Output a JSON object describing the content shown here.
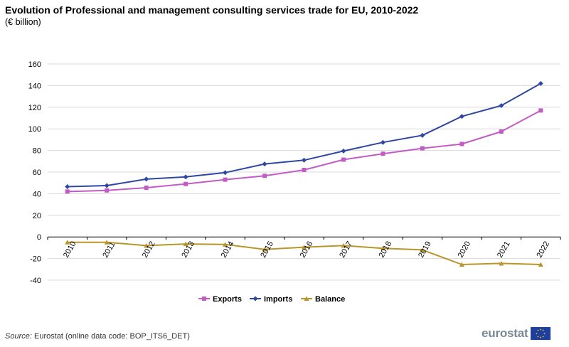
{
  "header": {
    "title": "Evolution of Professional and management consulting services trade for EU, 2010-2022",
    "subtitle": "(€ billion)"
  },
  "footer": {
    "source_label": "Source:",
    "source_text": "Eurostat (online data code: BOP_ITS6_DET)"
  },
  "branding": {
    "logo_text": "eurostat",
    "logo_icon": "eu-flag-icon"
  },
  "colors": {
    "exports": "#c25cc4",
    "imports": "#2f47a3",
    "balance": "#b8962b",
    "grid": "#d9d9d9",
    "axis": "#000000"
  },
  "chart_data": {
    "type": "line",
    "title": "Evolution of Professional and management consulting services trade for EU, 2010-2022",
    "subtitle": "(€ billion)",
    "xlabel": "",
    "ylabel": "",
    "ylim": [
      -40,
      160
    ],
    "yticks": [
      -40,
      -20,
      0,
      20,
      40,
      60,
      80,
      100,
      120,
      140,
      160
    ],
    "grid": true,
    "legend_position": "bottom-center",
    "categories": [
      "2010",
      "2011",
      "2012",
      "2013",
      "2014",
      "2015",
      "2016",
      "2017",
      "2018",
      "2019",
      "2020",
      "2021",
      "2022"
    ],
    "series": [
      {
        "name": "Exports",
        "marker": "square",
        "values": [
          42,
          43,
          45.5,
          49,
          53,
          56.5,
          62,
          71.5,
          77,
          82,
          86,
          97.5,
          117
        ]
      },
      {
        "name": "Imports",
        "marker": "diamond",
        "values": [
          46.5,
          47.5,
          53.5,
          55.5,
          59.5,
          67.5,
          71,
          79.5,
          87.5,
          94,
          111.5,
          121.5,
          142
        ]
      },
      {
        "name": "Balance",
        "marker": "triangle",
        "values": [
          -5,
          -5,
          -8,
          -6.5,
          -7,
          -11.5,
          -9.5,
          -8,
          -10.5,
          -12,
          -25.5,
          -24.5,
          -25.5
        ]
      }
    ]
  }
}
